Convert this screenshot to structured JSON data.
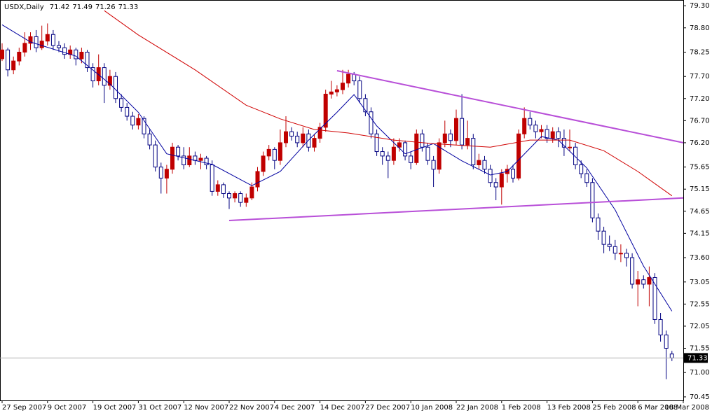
{
  "chart_data": {
    "type": "candlestick",
    "symbol": "USDX,Daily",
    "ylim": [
      70.37,
      79.43
    ],
    "xlim": [
      -0.37,
      120
    ],
    "yticks": [
      {
        "value": 79.3,
        "label": "79.30"
      },
      {
        "value": 78.8,
        "label": "78.80"
      },
      78.25,
      {
        "value": 77.7,
        "label": "77.70"
      },
      {
        "value": 77.2,
        "label": "77.20"
      },
      {
        "value": 76.7,
        "label": "76.70"
      },
      {
        "value": 76.2,
        "label": "76.20"
      },
      75.65,
      75.15,
      74.65,
      74.15,
      {
        "value": 73.6,
        "label": "73.60"
      },
      73.05,
      72.55,
      72.05,
      71.55,
      {
        "value": 71,
        "label": "71.00"
      },
      70.45
    ],
    "xticks": [
      {
        "value": 0,
        "label": "27 Sep 2007"
      },
      {
        "value": 8,
        "label": "9 Oct 2007"
      },
      {
        "value": 16,
        "label": "19 Oct 2007"
      },
      {
        "value": 24,
        "label": "31 Oct 2007"
      },
      {
        "value": 32,
        "label": "12 Nov 2007"
      },
      {
        "value": 40,
        "label": "22 Nov 2007"
      },
      {
        "value": 48,
        "label": "4 Dec 2007"
      },
      {
        "value": 56,
        "label": "14 Dec 2007"
      },
      {
        "value": 64,
        "label": "27 Dec 2007"
      },
      {
        "value": 72,
        "label": "10 Jan 2008"
      },
      {
        "value": 80,
        "label": "22 Jan 2008"
      },
      {
        "value": 88,
        "label": "1 Feb 2008"
      },
      {
        "value": 96,
        "label": "13 Feb 2008"
      },
      {
        "value": 104,
        "label": "25 Feb 2008"
      },
      {
        "value": 112,
        "label": "6 Mar 2008"
      },
      {
        "value": 120,
        "label": "18 Mar 2008"
      }
    ],
    "up_color": "#c00000",
    "down_color": "#000080",
    "ohlc": [
      [
        78.1,
        78.45,
        78.05,
        78.3
      ],
      [
        78.3,
        78.35,
        77.7,
        77.85
      ],
      [
        77.85,
        78.15,
        77.75,
        78.05
      ],
      [
        78.05,
        78.35,
        77.95,
        78.25
      ],
      [
        78.25,
        78.7,
        78.15,
        78.45
      ],
      [
        78.45,
        78.7,
        78.3,
        78.6
      ],
      [
        78.6,
        78.75,
        78.25,
        78.35
      ],
      [
        78.35,
        78.85,
        78.3,
        78.5
      ],
      [
        78.5,
        78.9,
        78.4,
        78.65
      ],
      [
        78.65,
        78.75,
        78.3,
        78.4
      ],
      [
        78.4,
        78.5,
        78.25,
        78.35
      ],
      [
        78.35,
        78.45,
        78.1,
        78.2
      ],
      [
        78.2,
        78.4,
        78.1,
        78.3
      ],
      [
        78.3,
        78.35,
        77.95,
        78.1
      ],
      [
        78.1,
        78.35,
        78.0,
        78.25
      ],
      [
        78.25,
        78.3,
        77.8,
        77.9
      ],
      [
        77.9,
        78.0,
        77.45,
        77.6
      ],
      [
        77.6,
        78.2,
        77.5,
        77.9
      ],
      [
        77.9,
        78.0,
        77.1,
        77.5
      ],
      [
        77.5,
        77.85,
        77.4,
        77.7
      ],
      [
        77.7,
        77.8,
        77.1,
        77.2
      ],
      [
        77.2,
        77.3,
        76.9,
        77.0
      ],
      [
        77.0,
        77.1,
        76.7,
        76.8
      ],
      [
        76.8,
        76.9,
        76.5,
        76.6
      ],
      [
        76.6,
        76.85,
        76.5,
        76.75
      ],
      [
        76.75,
        76.8,
        76.3,
        76.4
      ],
      [
        76.4,
        76.5,
        76.05,
        76.15
      ],
      [
        76.15,
        76.25,
        75.55,
        75.65
      ],
      [
        75.65,
        75.75,
        75.05,
        75.4
      ],
      [
        75.4,
        75.7,
        75.05,
        75.6
      ],
      [
        75.6,
        76.2,
        75.5,
        76.1
      ],
      [
        76.1,
        76.15,
        75.8,
        75.9
      ],
      [
        75.9,
        76.1,
        75.6,
        75.7
      ],
      [
        75.7,
        76.1,
        75.65,
        75.9
      ],
      [
        75.9,
        76.0,
        75.7,
        75.8
      ],
      [
        75.8,
        75.95,
        75.6,
        75.85
      ],
      [
        75.85,
        75.9,
        75.6,
        75.7
      ],
      [
        75.7,
        75.8,
        75.0,
        75.1
      ],
      [
        75.1,
        75.35,
        75.0,
        75.25
      ],
      [
        75.25,
        75.3,
        74.95,
        75.05
      ],
      [
        75.05,
        75.1,
        74.7,
        74.95
      ],
      [
        74.95,
        75.1,
        74.85,
        75.05
      ],
      [
        75.05,
        75.1,
        74.75,
        74.85
      ],
      [
        74.85,
        75.05,
        74.75,
        74.95
      ],
      [
        74.95,
        75.3,
        74.9,
        75.2
      ],
      [
        75.2,
        75.65,
        75.1,
        75.55
      ],
      [
        75.55,
        76.0,
        75.45,
        75.9
      ],
      [
        75.9,
        76.15,
        75.8,
        76.05
      ],
      [
        76.05,
        76.1,
        75.6,
        75.8
      ],
      [
        75.8,
        76.5,
        75.7,
        76.2
      ],
      [
        76.2,
        76.8,
        76.1,
        76.45
      ],
      [
        76.45,
        76.55,
        76.25,
        76.35
      ],
      [
        76.35,
        76.45,
        76.1,
        76.2
      ],
      [
        76.2,
        76.55,
        76.1,
        76.4
      ],
      [
        76.4,
        76.5,
        76.0,
        76.1
      ],
      [
        76.1,
        76.4,
        76.0,
        76.3
      ],
      [
        76.3,
        76.65,
        76.2,
        76.55
      ],
      [
        76.55,
        77.4,
        76.45,
        77.3
      ],
      [
        77.3,
        77.6,
        77.2,
        77.35
      ],
      [
        77.35,
        77.5,
        77.25,
        77.4
      ],
      [
        77.4,
        77.85,
        77.3,
        77.55
      ],
      [
        77.55,
        77.85,
        77.45,
        77.75
      ],
      [
        77.75,
        77.8,
        77.5,
        77.6
      ],
      [
        77.6,
        77.7,
        77.1,
        77.2
      ],
      [
        77.2,
        77.3,
        76.8,
        76.9
      ],
      [
        76.9,
        77.0,
        76.3,
        76.4
      ],
      [
        76.4,
        76.5,
        75.9,
        76.0
      ],
      [
        76.0,
        76.1,
        75.7,
        75.9
      ],
      [
        75.9,
        76.0,
        75.4,
        75.8
      ],
      [
        75.8,
        76.3,
        75.7,
        76.1
      ],
      [
        76.1,
        76.3,
        76.0,
        76.2
      ],
      [
        76.2,
        76.25,
        75.8,
        75.9
      ],
      [
        75.9,
        76.0,
        75.6,
        75.75
      ],
      [
        75.75,
        76.5,
        75.7,
        76.4
      ],
      [
        76.4,
        76.5,
        76.0,
        76.1
      ],
      [
        76.1,
        76.2,
        75.7,
        75.8
      ],
      [
        75.8,
        75.9,
        75.2,
        75.6
      ],
      [
        75.6,
        76.3,
        75.5,
        76.2
      ],
      [
        76.2,
        76.7,
        76.1,
        76.4
      ],
      [
        76.4,
        76.5,
        76.1,
        76.25
      ],
      [
        76.25,
        76.95,
        76.15,
        76.75
      ],
      [
        76.75,
        77.3,
        76.05,
        76.15
      ],
      [
        76.15,
        76.7,
        76.05,
        76.3
      ],
      [
        76.3,
        76.4,
        75.6,
        75.7
      ],
      [
        75.7,
        75.95,
        75.6,
        75.8
      ],
      [
        75.8,
        75.9,
        75.5,
        75.6
      ],
      [
        75.6,
        75.7,
        75.2,
        75.3
      ],
      [
        75.3,
        75.4,
        74.9,
        75.2
      ],
      [
        75.2,
        75.6,
        74.8,
        75.5
      ],
      [
        75.5,
        75.7,
        75.3,
        75.6
      ],
      [
        75.6,
        75.7,
        75.3,
        75.4
      ],
      [
        75.4,
        76.5,
        75.35,
        76.4
      ],
      [
        76.4,
        77.0,
        76.3,
        76.75
      ],
      [
        76.75,
        76.9,
        76.5,
        76.6
      ],
      [
        76.6,
        76.7,
        76.3,
        76.45
      ],
      [
        76.45,
        76.6,
        76.3,
        76.5
      ],
      [
        76.5,
        76.6,
        76.2,
        76.3
      ],
      [
        76.3,
        76.55,
        76.2,
        76.45
      ],
      [
        76.45,
        76.55,
        76.1,
        76.3
      ],
      [
        76.3,
        76.5,
        75.9,
        76.1
      ],
      [
        76.1,
        76.5,
        76.0,
        76.1
      ],
      [
        76.1,
        76.2,
        75.6,
        75.7
      ],
      [
        75.7,
        75.8,
        75.4,
        75.5
      ],
      [
        75.5,
        75.6,
        75.2,
        75.3
      ],
      [
        75.3,
        75.4,
        74.4,
        74.5
      ],
      [
        74.5,
        74.6,
        74.0,
        74.2
      ],
      [
        74.2,
        74.3,
        73.7,
        73.9
      ],
      [
        73.9,
        74.1,
        73.75,
        73.85
      ],
      [
        73.85,
        74.0,
        73.55,
        73.7
      ],
      [
        73.7,
        73.9,
        73.5,
        73.7
      ],
      [
        73.7,
        73.8,
        73.4,
        73.6
      ],
      [
        73.6,
        73.7,
        72.9,
        73.0
      ],
      [
        73.0,
        73.3,
        72.5,
        73.1
      ],
      [
        73.1,
        73.2,
        72.9,
        73.0
      ],
      [
        73.0,
        73.4,
        72.5,
        73.15
      ],
      [
        73.15,
        73.25,
        72.1,
        72.2
      ],
      [
        72.2,
        72.35,
        71.7,
        71.85
      ],
      [
        71.85,
        71.95,
        70.85,
        71.55
      ],
      [
        71.42,
        71.49,
        71.26,
        71.33
      ]
    ],
    "lines": [
      {
        "color": "#0000a0",
        "x": [
          0,
          5,
          13,
          19,
          24,
          29,
          37,
          44,
          49,
          54,
          59,
          62,
          66,
          71,
          76,
          81,
          86,
          89,
          95,
          98,
          103,
          108,
          113,
          118
        ],
        "values": [
          78.87,
          78.48,
          78.16,
          77.53,
          76.89,
          75.95,
          75.71,
          75.23,
          75.55,
          76.26,
          76.89,
          77.29,
          76.58,
          75.95,
          76.18,
          75.79,
          75.47,
          75.55,
          76.34,
          76.26,
          75.63,
          74.68,
          73.41,
          72.39
        ]
      },
      {
        "color": "#d00000",
        "x": [
          18,
          24,
          34,
          43,
          49,
          55,
          61,
          69,
          76,
          86,
          93,
          100,
          106,
          112,
          118
        ],
        "values": [
          79.19,
          78.64,
          77.85,
          77.05,
          76.74,
          76.5,
          76.42,
          76.26,
          76.18,
          76.1,
          76.26,
          76.26,
          76.02,
          75.55,
          75.0
        ]
      },
      {
        "color": "#b84fd8",
        "x": [
          59,
          120
        ],
        "values": [
          77.83,
          76.2
        ]
      },
      {
        "color": "#b84fd8",
        "x": [
          40,
          120
        ],
        "values": [
          74.44,
          74.95
        ]
      }
    ]
  }
}
